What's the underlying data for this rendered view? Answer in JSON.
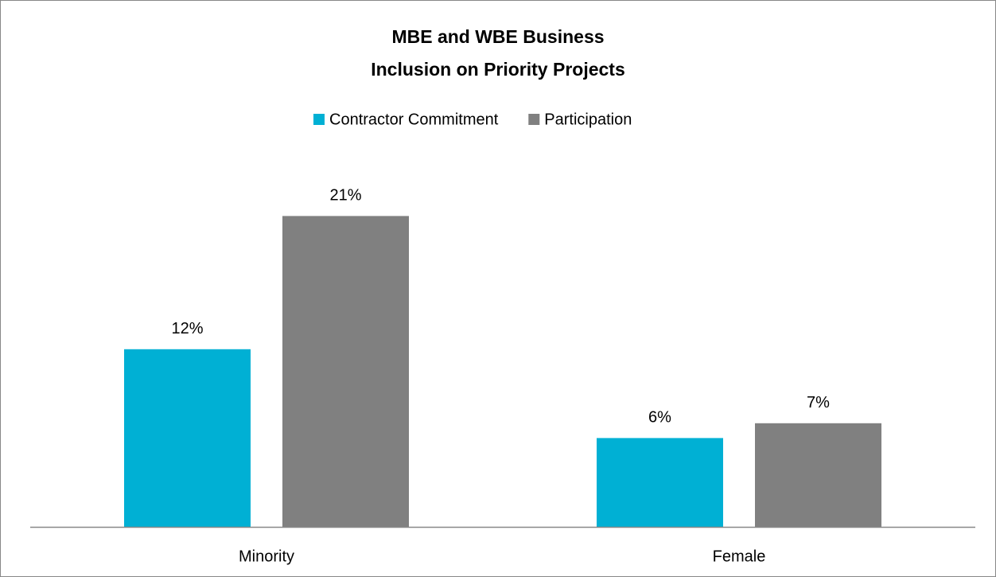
{
  "chart_data": {
    "type": "bar",
    "title": [
      "MBE and WBE Business",
      "Inclusion on Priority Projects"
    ],
    "categories": [
      "Minority",
      "Female"
    ],
    "series": [
      {
        "name": "Contractor Commitment",
        "color": "#00b0d4",
        "values": [
          12,
          6
        ],
        "value_labels": [
          "12%",
          "6%"
        ]
      },
      {
        "name": "Participation",
        "color": "#808080",
        "values": [
          21,
          7
        ],
        "value_labels": [
          "21%",
          "7%"
        ]
      }
    ],
    "legend": "top"
  }
}
